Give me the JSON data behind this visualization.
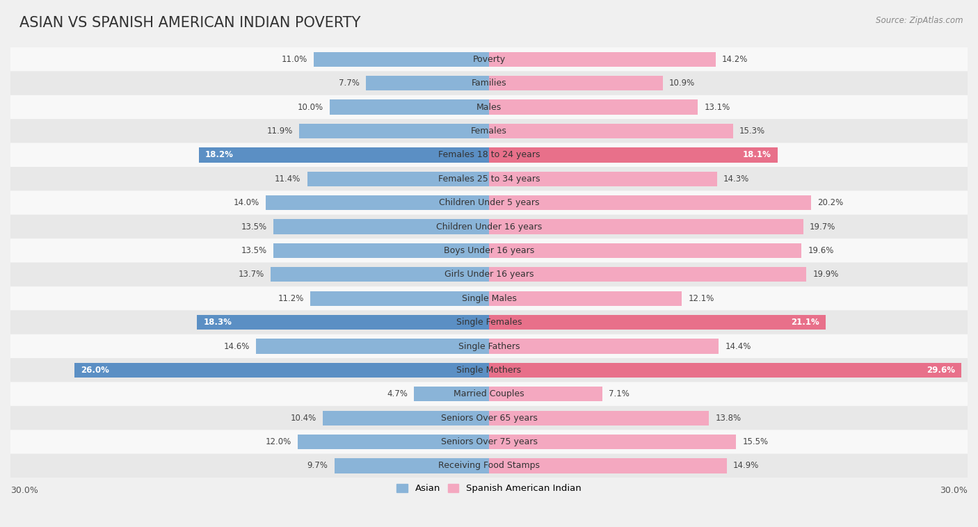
{
  "title": "ASIAN VS SPANISH AMERICAN INDIAN POVERTY",
  "source": "Source: ZipAtlas.com",
  "categories": [
    "Poverty",
    "Families",
    "Males",
    "Females",
    "Females 18 to 24 years",
    "Females 25 to 34 years",
    "Children Under 5 years",
    "Children Under 16 years",
    "Boys Under 16 years",
    "Girls Under 16 years",
    "Single Males",
    "Single Females",
    "Single Fathers",
    "Single Mothers",
    "Married Couples",
    "Seniors Over 65 years",
    "Seniors Over 75 years",
    "Receiving Food Stamps"
  ],
  "asian_values": [
    11.0,
    7.7,
    10.0,
    11.9,
    18.2,
    11.4,
    14.0,
    13.5,
    13.5,
    13.7,
    11.2,
    18.3,
    14.6,
    26.0,
    4.7,
    10.4,
    12.0,
    9.7
  ],
  "spanish_values": [
    14.2,
    10.9,
    13.1,
    15.3,
    18.1,
    14.3,
    20.2,
    19.7,
    19.6,
    19.9,
    12.1,
    21.1,
    14.4,
    29.6,
    7.1,
    13.8,
    15.5,
    14.9
  ],
  "asian_color": "#8ab4d8",
  "spanish_color": "#f4a8c0",
  "asian_highlight_color": "#5b8fc4",
  "spanish_highlight_color": "#e8708a",
  "highlight_rows": [
    4,
    11,
    13
  ],
  "background_color": "#f0f0f0",
  "row_bg_light": "#f8f8f8",
  "row_bg_dark": "#e8e8e8",
  "axis_limit": 30.0,
  "legend_asian": "Asian",
  "legend_spanish": "Spanish American Indian",
  "title_fontsize": 15,
  "label_fontsize": 9,
  "value_fontsize": 8.5
}
